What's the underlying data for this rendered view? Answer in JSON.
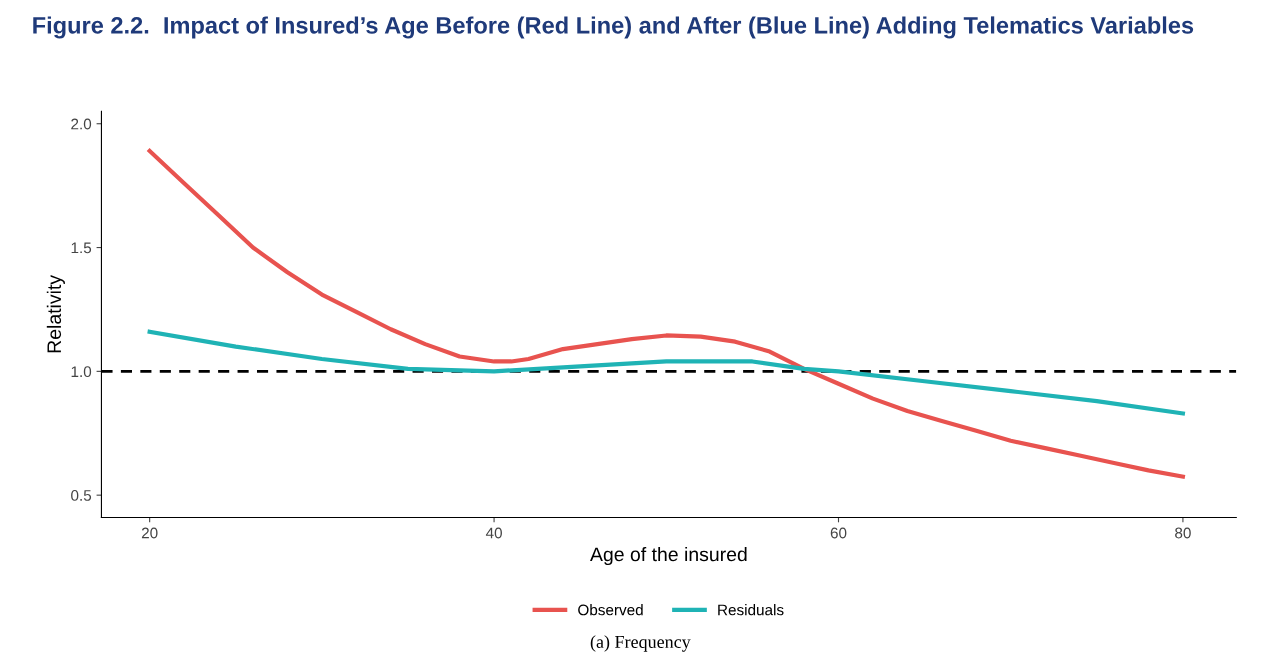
{
  "chart_data": {
    "type": "line",
    "title": "Figure 2.2.  Impact of Insured’s Age Before (Red Line) and After (Blue Line) Adding Telematics Variables",
    "xlabel": "Age of the insured",
    "ylabel": "Relativity",
    "series": [
      {
        "name": "Observed",
        "color": "#e8534f",
        "x": [
          20,
          22,
          24,
          26,
          28,
          30,
          32,
          34,
          36,
          38,
          40,
          41,
          42,
          44,
          46,
          48,
          50,
          52,
          54,
          56,
          58,
          60,
          62,
          64,
          66,
          68,
          70,
          72,
          74,
          76,
          78,
          80
        ],
        "values": [
          1.89,
          1.76,
          1.63,
          1.5,
          1.4,
          1.31,
          1.24,
          1.17,
          1.11,
          1.06,
          1.04,
          1.04,
          1.05,
          1.09,
          1.11,
          1.13,
          1.145,
          1.14,
          1.12,
          1.08,
          1.01,
          0.95,
          0.89,
          0.84,
          0.8,
          0.76,
          0.72,
          0.69,
          0.66,
          0.63,
          0.6,
          0.575
        ]
      },
      {
        "name": "Residuals",
        "color": "#1fb3b5",
        "x": [
          20,
          25,
          30,
          35,
          40,
          45,
          50,
          55,
          58,
          60,
          65,
          70,
          75,
          80
        ],
        "values": [
          1.16,
          1.1,
          1.05,
          1.01,
          1.0,
          1.02,
          1.04,
          1.04,
          1.01,
          1.0,
          0.96,
          0.92,
          0.88,
          0.83
        ]
      }
    ],
    "xlim": [
      17.2,
      83.1
    ],
    "ylim": [
      0.41,
      2.05
    ],
    "xticks": [
      20,
      40,
      60,
      80
    ],
    "yticks": [
      0.5,
      {
        "value": 1,
        "label": "1.0"
      },
      1.5,
      {
        "value": 2,
        "label": "2.0"
      }
    ],
    "ref_lines": [
      {
        "axis": "y",
        "value": 1.0,
        "color": "#000000",
        "line_style": "dashed"
      }
    ],
    "legend": "bottom",
    "grid": false,
    "marker": "none",
    "line_style": "solid",
    "annotations": [
      "(a) Frequency"
    ]
  }
}
